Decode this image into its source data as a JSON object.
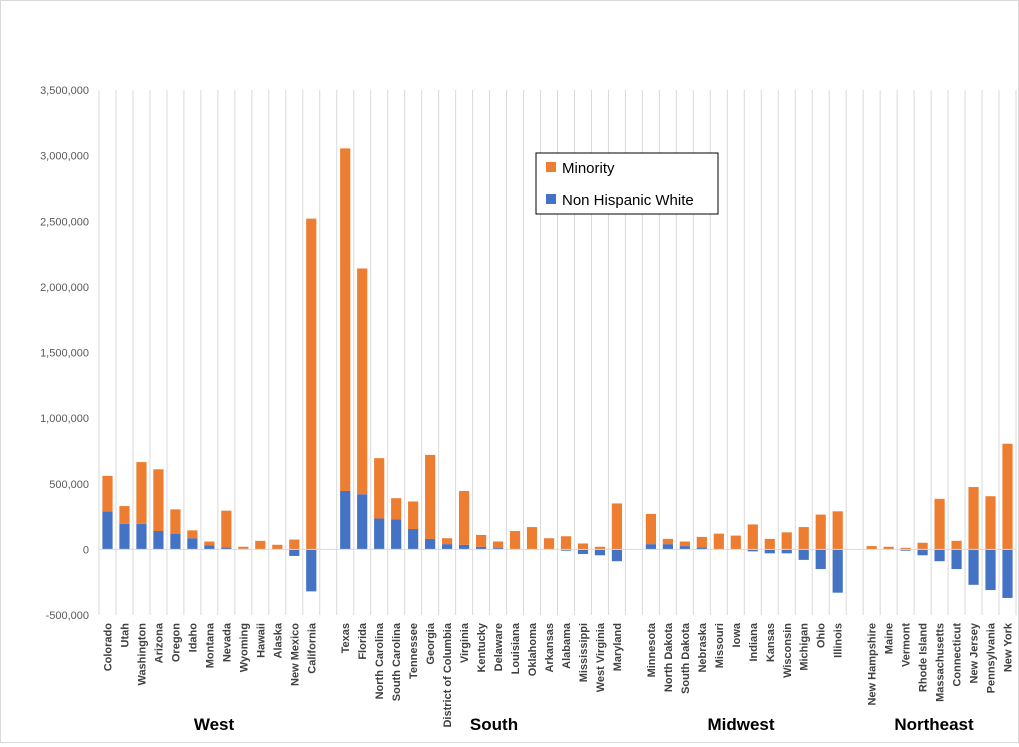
{
  "chart_data": {
    "type": "bar",
    "stacked": true,
    "title": "",
    "xlabel": "",
    "ylabel": "",
    "ylim": [
      -500000,
      3500000
    ],
    "yticks": [
      -500000,
      0,
      500000,
      1000000,
      1500000,
      2000000,
      2500000,
      3000000,
      3500000
    ],
    "ytick_labels": [
      "-500,000",
      "0",
      "500,000",
      "1,000,000",
      "1,500,000",
      "2,000,000",
      "2,500,000",
      "3,000,000",
      "3,500,000"
    ],
    "grid": "vertical",
    "legend_position": "top-center",
    "series_colors": {
      "Minority": "#ed7d31",
      "Non Hispanic White": "#4472c4"
    },
    "categories": [
      "Colorado",
      "Utah",
      "Washington",
      "Arizona",
      "Oregon",
      "Idaho",
      "Montana",
      "Nevada",
      "Wyoming",
      "Hawaii",
      "Alaska",
      "New Mexico",
      "California",
      "",
      "Texas",
      "Florida",
      "North Carolina",
      "South Carolina",
      "Tennessee",
      "Georgia",
      "District of Columbia",
      "Virginia",
      "Kentucky",
      "Delaware",
      "Louisiana",
      "Oklahoma",
      "Arkansas",
      "Alabama",
      "Mississippi",
      "West Virginia",
      "Maryland",
      "",
      "Minnesota",
      "North Dakota",
      "South Dakota",
      "Nebraska",
      "Missouri",
      "Iowa",
      "Indiana",
      "Kansas",
      "Wisconsin",
      "Michigan",
      "Ohio",
      "Illinois",
      "",
      "New Hampshire",
      "Maine",
      "Vermont",
      "Rhode Island",
      "Massachusetts",
      "Connecticut",
      "New Jersey",
      "Pennsylvania",
      "New York"
    ],
    "series": [
      {
        "name": "Minority",
        "values": [
          270000,
          135000,
          470000,
          470000,
          185000,
          60000,
          30000,
          280000,
          15000,
          65000,
          35000,
          75000,
          2520000,
          0,
          2610000,
          1720000,
          460000,
          160000,
          210000,
          640000,
          45000,
          410000,
          90000,
          50000,
          140000,
          170000,
          85000,
          100000,
          45000,
          20000,
          350000,
          0,
          230000,
          40000,
          35000,
          80000,
          120000,
          105000,
          190000,
          80000,
          130000,
          170000,
          265000,
          290000,
          0,
          25000,
          20000,
          12000,
          50000,
          385000,
          65000,
          475000,
          405000,
          805000
        ]
      },
      {
        "name": "Non Hispanic White",
        "values": [
          290000,
          195000,
          195000,
          140000,
          120000,
          85000,
          30000,
          15000,
          5000,
          0,
          0,
          -50000,
          -320000,
          0,
          445000,
          420000,
          235000,
          230000,
          155000,
          80000,
          40000,
          35000,
          20000,
          10000,
          0,
          0,
          0,
          -10000,
          -35000,
          -45000,
          -90000,
          0,
          40000,
          40000,
          25000,
          15000,
          0,
          0,
          -15000,
          -30000,
          -30000,
          -80000,
          -150000,
          -330000,
          0,
          0,
          0,
          -10000,
          -45000,
          -90000,
          -150000,
          -270000,
          -310000,
          -370000
        ]
      }
    ],
    "group_labels": [
      "West",
      "South",
      "Midwest",
      "Northeast"
    ]
  }
}
